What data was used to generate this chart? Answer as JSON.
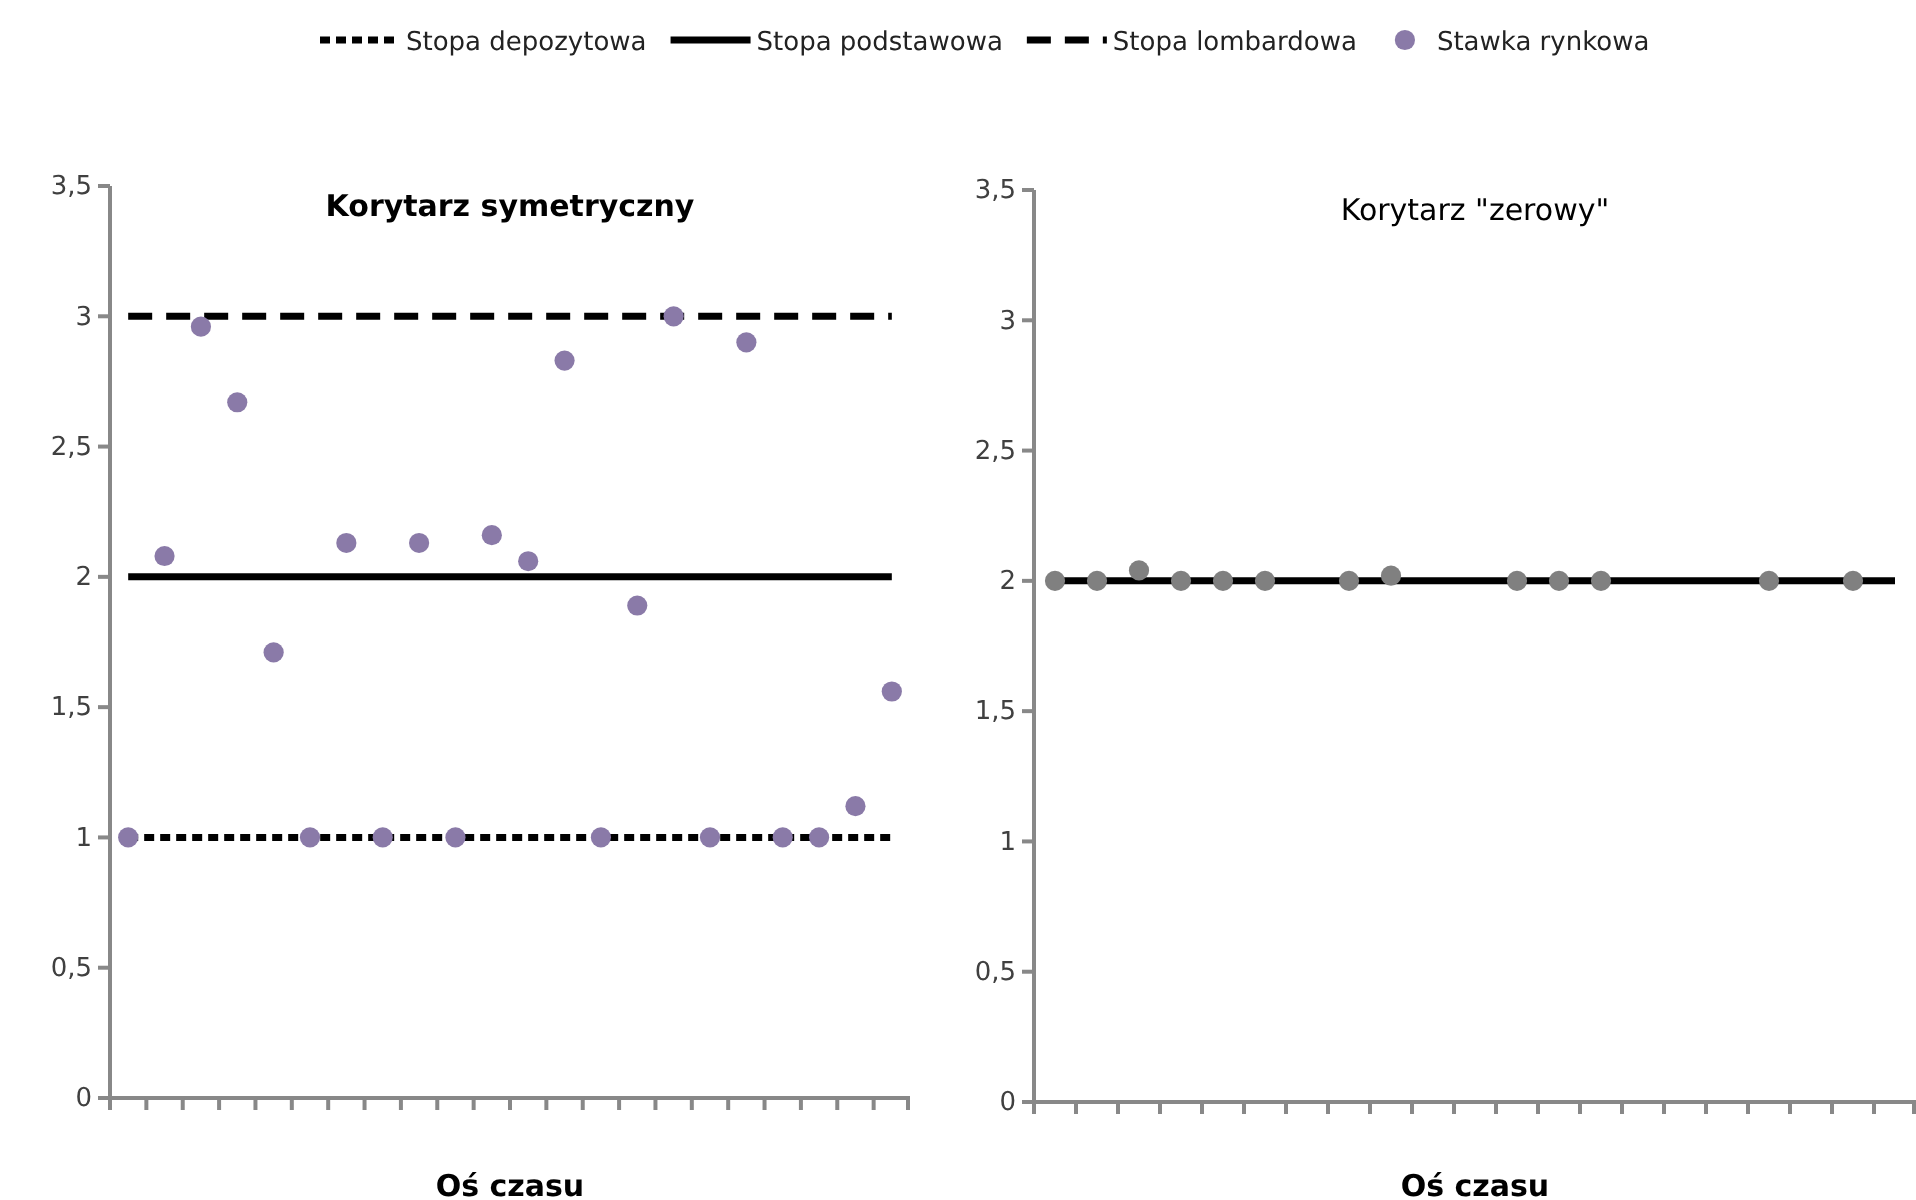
{
  "chart_data": [
    {
      "type": "line",
      "title": "Korytarz symetryczny",
      "xlabel": "Oś czasu",
      "legend": "top",
      "categories": [
        null,
        null,
        null,
        null,
        null,
        null,
        null,
        null,
        null,
        null,
        null,
        null,
        null,
        null,
        null,
        null,
        null,
        null,
        null,
        null,
        null,
        null
      ],
      "ylim": [
        0,
        3.5
      ],
      "yticks": [
        0,
        {
          "value": 0.5,
          "label": "0,5"
        },
        1,
        {
          "value": 1.5,
          "label": "1,5"
        },
        2,
        {
          "value": 2.5,
          "label": "2,5"
        },
        3,
        {
          "value": 3.5,
          "label": "3,5"
        }
      ],
      "series": [
        {
          "name": "Stopa depozytowa",
          "color": "#000000",
          "line_style": "dotted",
          "values": [
            1,
            1,
            1,
            1,
            1,
            1,
            1,
            1,
            1,
            1,
            1,
            1,
            1,
            1,
            1,
            1,
            1,
            1,
            1,
            1,
            1,
            1
          ]
        },
        {
          "name": "Stopa podstawowa",
          "color": "#000000",
          "line_style": "solid",
          "values": [
            2,
            2,
            2,
            2,
            2,
            2,
            2,
            2,
            2,
            2,
            2,
            2,
            2,
            2,
            2,
            2,
            2,
            2,
            2,
            2,
            2,
            2
          ]
        },
        {
          "name": "Stopa lombardowa",
          "color": "#000000",
          "line_style": "dashed",
          "values": [
            3,
            3,
            3,
            3,
            3,
            3,
            3,
            3,
            3,
            3,
            3,
            3,
            3,
            3,
            3,
            3,
            3,
            3,
            3,
            3,
            3,
            3
          ]
        },
        {
          "type": "scatter",
          "name": "Stawka rynkowa",
          "color": "#8a7aa8",
          "marker": "circle",
          "values": [
            1,
            2.08,
            2.96,
            2.67,
            1.71,
            1,
            2.13,
            1,
            2.13,
            1,
            2.16,
            2.06,
            2.83,
            1,
            1.89,
            3,
            1,
            2.9,
            1,
            1,
            1.12,
            1.56
          ]
        }
      ]
    },
    {
      "type": "line",
      "title": "Korytarz \"zerowy\"",
      "xlabel": "Oś czasu",
      "categories": [
        null,
        null,
        null,
        null,
        null,
        null,
        null,
        null,
        null,
        null,
        null,
        null,
        null,
        null,
        null,
        null,
        null,
        null,
        null,
        null,
        null
      ],
      "ylim": [
        0,
        3.5
      ],
      "yticks": [
        0,
        {
          "value": 0.5,
          "label": "0,5"
        },
        1,
        {
          "value": 1.5,
          "label": "1,5"
        },
        2,
        {
          "value": 2.5,
          "label": "2,5"
        },
        3,
        {
          "value": 3.5,
          "label": "3,5"
        }
      ],
      "series": [
        {
          "color": "#000000",
          "line_style": "solid",
          "values": [
            2,
            2,
            2,
            2,
            2,
            2,
            2,
            2,
            2,
            2,
            2,
            2,
            2,
            2,
            2,
            2,
            2,
            2,
            2,
            2,
            2
          ]
        },
        {
          "type": "scatter",
          "color": "#808080",
          "marker": "circle",
          "values": [
            2,
            2,
            2.04,
            2,
            2,
            2,
            null,
            2,
            2.02,
            null,
            null,
            2,
            2,
            2,
            null,
            null,
            null,
            2,
            null,
            2,
            null
          ]
        }
      ]
    }
  ]
}
